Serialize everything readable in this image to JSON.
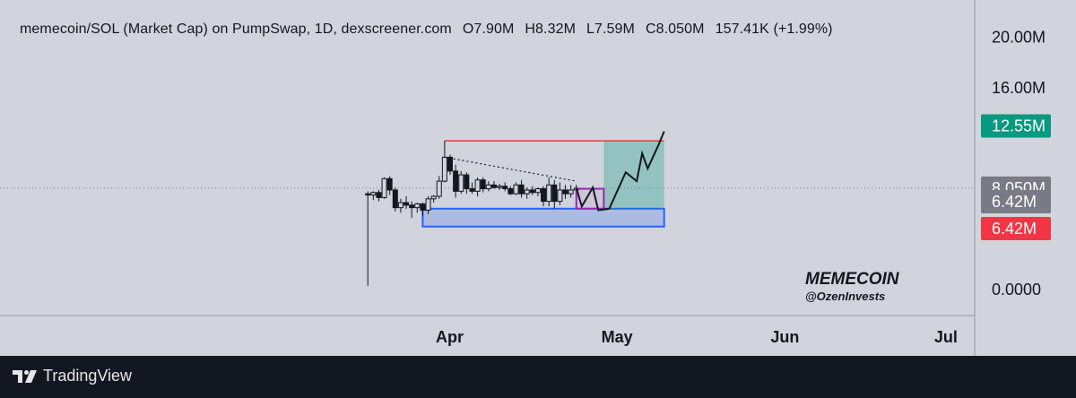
{
  "header": {
    "symbol": "memecoin/SOL (Market Cap) on PumpSwap, 1D, dexscreener.com",
    "open": "O7.90M",
    "high": "H8.32M",
    "low": "L7.59M",
    "close": "C8.050M",
    "change": "157.41K (+1.99%)"
  },
  "watermark": {
    "title": "MEMECOIN",
    "handle": "@OzenInvests"
  },
  "footer": {
    "brand": "TradingView"
  },
  "colors": {
    "background": "#d1d4dc",
    "footer": "#131722",
    "target_tag": "#089981",
    "stop_tag": "#f23645",
    "last_price_tag": "#787b86",
    "support_zone": "#2962ff",
    "profit_zone": "#089981",
    "resistance_line": "#f23645",
    "consolidation_box": "#9c27b0"
  },
  "chart_data": {
    "type": "candlestick",
    "title": "memecoin/SOL (Market Cap) on PumpSwap, 1D, dexscreener.com",
    "y_axis": {
      "ticks": [
        "20.00M",
        "16.00M",
        "0.0000"
      ],
      "tick_values": [
        20,
        16,
        0
      ],
      "unit": "M",
      "ylim": [
        -1.2,
        21.4
      ]
    },
    "x_axis": {
      "ticks": [
        "Apr",
        "May",
        "Jun",
        "Jul"
      ]
    },
    "price_tags": [
      {
        "label": "12.55M",
        "value": 12.55,
        "kind": "target"
      },
      {
        "label": "8.050M",
        "value": 8.05,
        "kind": "last"
      },
      {
        "label": "6.42M",
        "value": 6.42,
        "kind": "last-gray"
      },
      {
        "label": "6.42M",
        "value": 6.42,
        "kind": "stop"
      }
    ],
    "last_price": 8.05,
    "candles": [
      {
        "date": "Mar 17",
        "o": 7.6,
        "h": 7.8,
        "l": 0.3,
        "c": 7.5
      },
      {
        "date": "Mar 18",
        "o": 7.5,
        "h": 7.8,
        "l": 7.1,
        "c": 7.7
      },
      {
        "date": "Mar 19",
        "o": 7.7,
        "h": 7.9,
        "l": 7.0,
        "c": 7.3
      },
      {
        "date": "Mar 20",
        "o": 7.3,
        "h": 8.9,
        "l": 7.2,
        "c": 8.8
      },
      {
        "date": "Mar 21",
        "o": 8.8,
        "h": 9.0,
        "l": 7.5,
        "c": 7.9
      },
      {
        "date": "Mar 22",
        "o": 7.9,
        "h": 8.1,
        "l": 6.2,
        "c": 6.5
      },
      {
        "date": "Mar 23",
        "o": 6.5,
        "h": 7.2,
        "l": 6.1,
        "c": 6.9
      },
      {
        "date": "Mar 24",
        "o": 6.9,
        "h": 7.4,
        "l": 6.4,
        "c": 6.7
      },
      {
        "date": "Mar 25",
        "o": 6.7,
        "h": 7.0,
        "l": 5.7,
        "c": 6.5
      },
      {
        "date": "Mar 26",
        "o": 6.5,
        "h": 6.9,
        "l": 6.1,
        "c": 6.8
      },
      {
        "date": "Mar 27",
        "o": 6.8,
        "h": 6.9,
        "l": 5.8,
        "c": 6.3
      },
      {
        "date": "Mar 28",
        "o": 6.3,
        "h": 7.4,
        "l": 6.0,
        "c": 7.2
      },
      {
        "date": "Mar 29",
        "o": 7.2,
        "h": 7.5,
        "l": 6.9,
        "c": 7.4
      },
      {
        "date": "Mar 30",
        "o": 7.4,
        "h": 9.0,
        "l": 7.2,
        "c": 8.6
      },
      {
        "date": "Mar 31",
        "o": 8.6,
        "h": 11.8,
        "l": 8.5,
        "c": 10.5
      },
      {
        "date": "Apr 1",
        "o": 10.5,
        "h": 10.7,
        "l": 9.1,
        "c": 9.4
      },
      {
        "date": "Apr 2",
        "o": 9.4,
        "h": 9.9,
        "l": 7.3,
        "c": 7.8
      },
      {
        "date": "Apr 3",
        "o": 7.8,
        "h": 9.4,
        "l": 7.6,
        "c": 9.1
      },
      {
        "date": "Apr 4",
        "o": 9.1,
        "h": 9.3,
        "l": 7.6,
        "c": 8.0
      },
      {
        "date": "Apr 5",
        "o": 8.0,
        "h": 8.5,
        "l": 7.6,
        "c": 7.8
      },
      {
        "date": "Apr 6",
        "o": 7.8,
        "h": 8.9,
        "l": 7.4,
        "c": 8.7
      },
      {
        "date": "Apr 7",
        "o": 8.7,
        "h": 8.9,
        "l": 7.7,
        "c": 8.0
      },
      {
        "date": "Apr 8",
        "o": 8.0,
        "h": 8.6,
        "l": 7.8,
        "c": 8.3
      },
      {
        "date": "Apr 9",
        "o": 8.3,
        "h": 8.6,
        "l": 8.0,
        "c": 8.1
      },
      {
        "date": "Apr 10",
        "o": 8.1,
        "h": 8.4,
        "l": 7.9,
        "c": 8.2
      },
      {
        "date": "Apr 11",
        "o": 8.2,
        "h": 8.5,
        "l": 7.8,
        "c": 8.0
      },
      {
        "date": "Apr 12",
        "o": 8.0,
        "h": 8.2,
        "l": 7.5,
        "c": 7.6
      },
      {
        "date": "Apr 13",
        "o": 7.6,
        "h": 8.5,
        "l": 7.5,
        "c": 8.3
      },
      {
        "date": "Apr 14",
        "o": 8.3,
        "h": 8.7,
        "l": 7.3,
        "c": 7.6
      },
      {
        "date": "Apr 15",
        "o": 7.6,
        "h": 8.1,
        "l": 7.2,
        "c": 7.9
      },
      {
        "date": "Apr 16",
        "o": 7.9,
        "h": 8.2,
        "l": 7.5,
        "c": 7.7
      },
      {
        "date": "Apr 17",
        "o": 7.7,
        "h": 8.1,
        "l": 7.4,
        "c": 8.0
      },
      {
        "date": "Apr 18",
        "o": 8.0,
        "h": 8.2,
        "l": 6.6,
        "c": 7.0
      },
      {
        "date": "Apr 19",
        "o": 7.0,
        "h": 8.9,
        "l": 6.6,
        "c": 8.3
      },
      {
        "date": "Apr 20",
        "o": 8.3,
        "h": 8.7,
        "l": 6.4,
        "c": 7.0
      },
      {
        "date": "Apr 21",
        "o": 7.0,
        "h": 8.5,
        "l": 6.7,
        "c": 7.9
      },
      {
        "date": "Apr 22",
        "o": 7.9,
        "h": 8.3,
        "l": 7.2,
        "c": 7.6
      },
      {
        "date": "Apr 23",
        "o": 7.6,
        "h": 8.3,
        "l": 7.3,
        "c": 7.9
      },
      {
        "date": "Apr 24",
        "o": 7.9,
        "h": 8.32,
        "l": 7.59,
        "c": 8.05
      }
    ],
    "annotations": {
      "resistance_level": 11.8,
      "descending_trendline": {
        "from": {
          "date": "Mar 31",
          "value": 10.5
        },
        "to": {
          "date": "Apr 24",
          "value": 8.6
        }
      },
      "support_zone": {
        "from_date": "Mar 27",
        "to_date": "May 10",
        "low": 5.0,
        "high": 6.42
      },
      "consolidation_box": {
        "from_date": "Apr 24",
        "to_date": "Apr 29",
        "low": 6.42,
        "high": 8.0
      },
      "profit_zone": {
        "from_date": "Apr 29",
        "to_date": "May 10",
        "low": 6.42,
        "high": 11.8
      },
      "projected_path": [
        {
          "date": "Apr 24",
          "value": 8.05
        },
        {
          "date": "Apr 25",
          "value": 6.6
        },
        {
          "date": "Apr 27",
          "value": 8.1
        },
        {
          "date": "Apr 28",
          "value": 6.3
        },
        {
          "date": "Apr 30",
          "value": 6.42
        },
        {
          "date": "May 3",
          "value": 9.3
        },
        {
          "date": "May 5",
          "value": 8.6
        },
        {
          "date": "May 6",
          "value": 10.8
        },
        {
          "date": "May 7",
          "value": 9.6
        },
        {
          "date": "May 9",
          "value": 11.5
        },
        {
          "date": "May 10",
          "value": 12.55
        }
      ]
    }
  }
}
